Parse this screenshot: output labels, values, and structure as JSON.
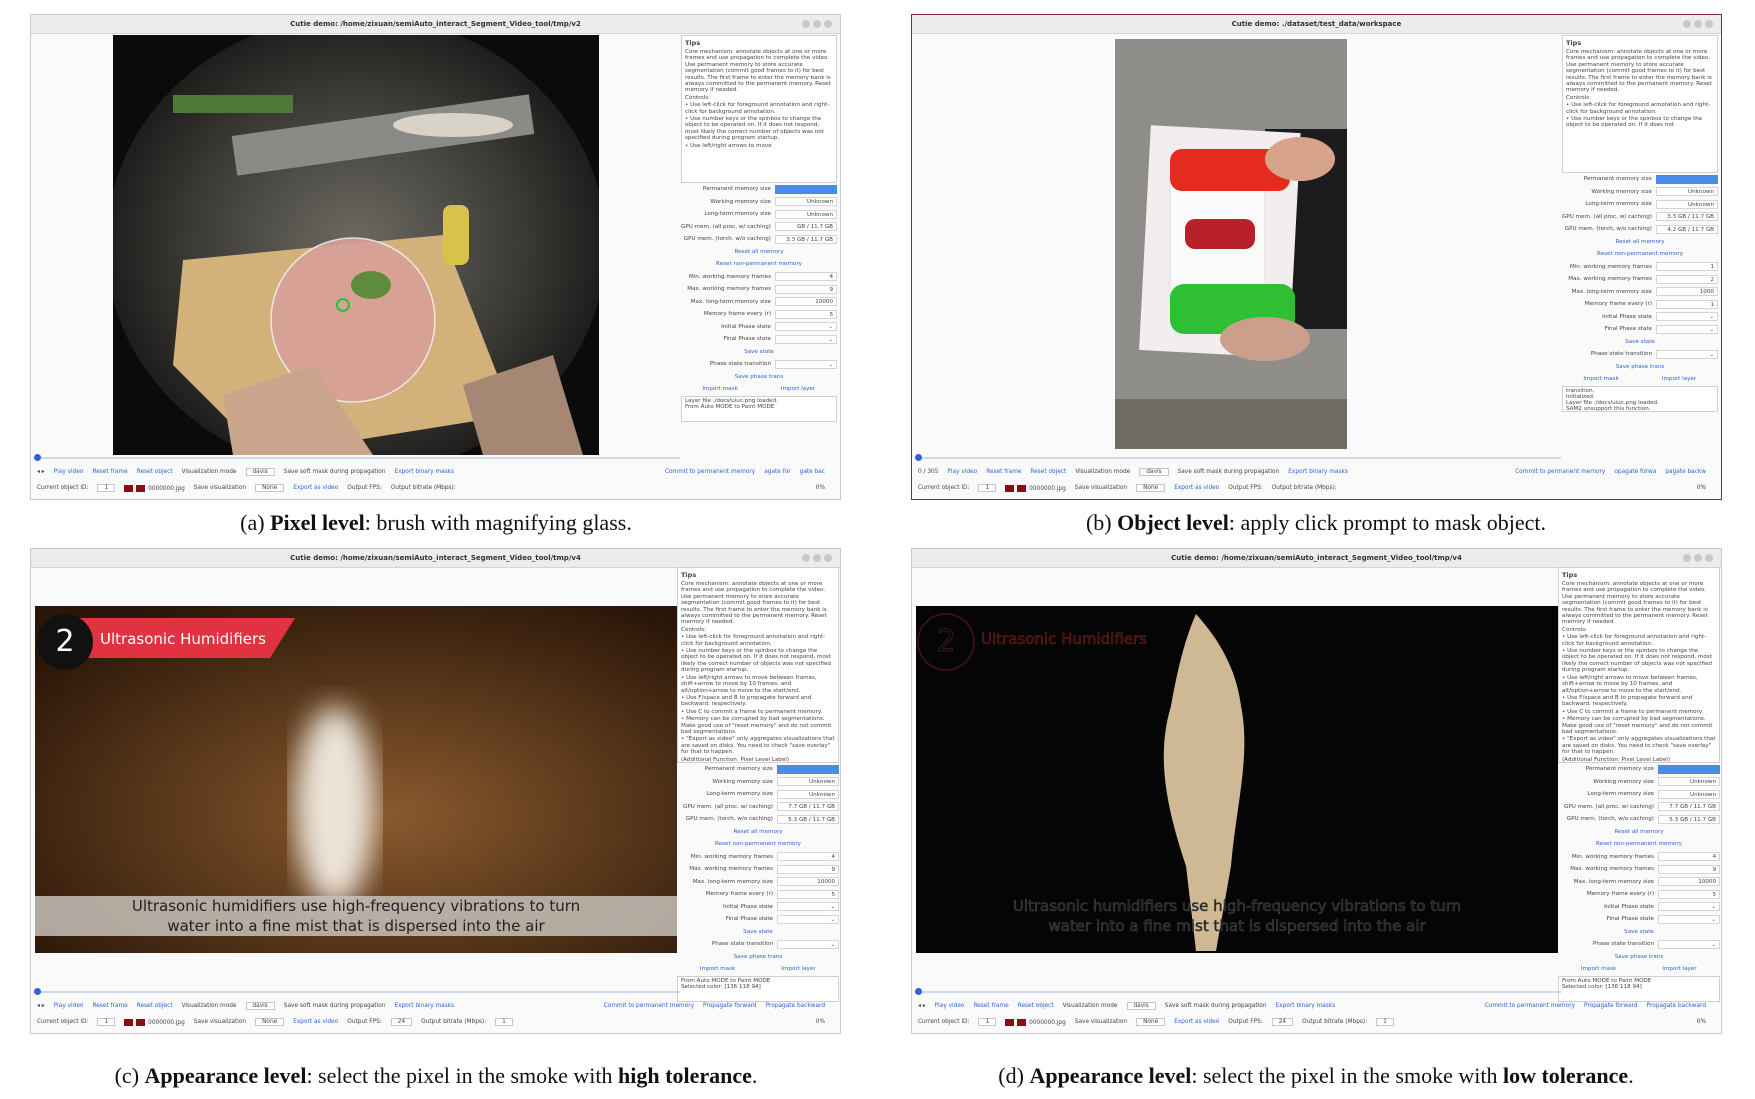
{
  "panels": [
    {
      "window_title": "Cutie demo: /home/zixuan/semiAuto_interact_Segment_Video_tool/tmp/v2",
      "tips_title": "Tips",
      "tips": [
        "Core mechanism: annotate objects at one or more frames and use propagation to complete the video. Use permanent memory to store accurate segmentation (commit good frames to it) for best results. The first frame to enter the memory bank is always committed to the permanent memory. Reset memory if needed.",
        "Controls:",
        "• Use left-click for foreground annotation and right-click for background annotation.",
        "• Use number keys or the spinbox to change the object to be operated on. If it does not respond, most likely the correct number of objects was not specified during program startup.",
        "• Use left/right arrows to move"
      ],
      "rows": [
        {
          "label": "Permanent memory size"
        },
        {
          "label": "Working memory size",
          "value": "Unknown"
        },
        {
          "label": "Long-term memory size",
          "value": "Unknown"
        },
        {
          "label": "GPU mem. (all proc, w/ caching)",
          "value": "GB / 11.7 GB"
        },
        {
          "label": "GPU mem. (torch, w/o caching)",
          "value": "3.3 GB / 11.7 GB"
        },
        {
          "button": "Reset all memory"
        },
        {
          "button": "Reset non-permanent memory"
        },
        {
          "label": "Min. working memory frames",
          "value": "4"
        },
        {
          "label": "Max. working memory frames",
          "value": "9"
        },
        {
          "label": "Max. long-term memory size",
          "value": "10000"
        },
        {
          "label": "Memory frame every (r)",
          "value": "5"
        },
        {
          "label": "Initial Phase state",
          "value": "⌄"
        },
        {
          "label": "Final Phase state",
          "value": "⌄"
        },
        {
          "button": "Save state"
        },
        {
          "label": "Phase state transition",
          "value": "⌄"
        },
        {
          "button": "Save phase trans"
        },
        {
          "buttons": [
            "Import mask",
            "Import layer"
          ]
        },
        {
          "log": [
            "Layer file ./docs/uiuc.png loaded.",
            "From Auto MODE to Paint MODE"
          ]
        }
      ],
      "toolbar1": [
        {
          "label": "◂ ▸"
        },
        {
          "button": "Play video"
        },
        {
          "button": "Reset frame"
        },
        {
          "button": "Reset object"
        },
        {
          "label": "Visualization mode"
        },
        {
          "box": "davis"
        },
        {
          "label": "Save soft mask during propagation"
        },
        {
          "button": "Export binary masks"
        }
      ],
      "toolbar1_right": [
        {
          "button": "Commit to permanent memory"
        },
        {
          "button": "agate for"
        },
        {
          "button": "gate bac"
        }
      ],
      "toolbar2": [
        {
          "label": "Current object ID:"
        },
        {
          "box": "1"
        },
        {
          "label": "0000000.jpg"
        },
        {
          "label": "Save visualization"
        },
        {
          "box": "None"
        },
        {
          "button": "Export as video"
        },
        {
          "label": "Output FPS:"
        },
        {
          "label": "Output bitrate (Mbps):"
        },
        {
          "label": "0%"
        }
      ],
      "caption": [
        {
          "text": "(a) "
        },
        {
          "text": "Pixel level",
          "bold": true
        },
        {
          "text": ": brush with magnifying glass."
        }
      ]
    },
    {
      "window_title": "Cutie demo: ./dataset/test_data/workspace",
      "tips_title": "Tips",
      "tips": [
        "Core mechanism: annotate objects at one or more frames and use propagation to complete the video. Use permanent memory to store accurate segmentation (commit good frames to it) for best results. The first frame to enter the memory bank is always committed to the permanent memory. Reset memory if needed.",
        "Controls:",
        "• Use left-click for foreground annotation and right-click for background annotation.",
        "• Use number keys or the spinbox to change the object to be operated on. If it does not"
      ],
      "rows": [
        {
          "label": "Permanent memory size"
        },
        {
          "label": "Working memory size",
          "value": "Unknown"
        },
        {
          "label": "Long-term memory size",
          "value": "Unknown"
        },
        {
          "label": "GPU mem. (all proc, w/ caching)",
          "value": "3.3 GB / 11.7 GB"
        },
        {
          "label": "GPU mem. (torch, w/o caching)",
          "value": "4.2 GB / 11.7 GB"
        },
        {
          "button": "Reset all memory"
        },
        {
          "button": "Reset non-permanent memory"
        },
        {
          "label": "Min. working memory frames",
          "value": "1"
        },
        {
          "label": "Max. working memory frames",
          "value": "2"
        },
        {
          "label": "Max. long-term memory size",
          "value": "1000"
        },
        {
          "label": "Memory frame every (r)",
          "value": "1"
        },
        {
          "label": "Initial Phase state",
          "value": "⌄"
        },
        {
          "label": "Final Phase state",
          "value": "⌄"
        },
        {
          "button": "Save state"
        },
        {
          "label": "Phase state transition",
          "value": "⌄"
        },
        {
          "button": "Save phase trans"
        },
        {
          "buttons": [
            "Import mask",
            "Import layer"
          ]
        },
        {
          "log": [
            "transition.",
            "Initialized.",
            "Layer file ./docs/uiuc.png loaded.",
            "SAM2 unsupport this function."
          ]
        }
      ],
      "toolbar1": [
        {
          "label": "0 / 305"
        },
        {
          "button": "Play video"
        },
        {
          "button": "Reset frame"
        },
        {
          "button": "Reset object"
        },
        {
          "label": "Visualization mode"
        },
        {
          "box": "davis"
        },
        {
          "label": "Save soft mask during propagation"
        },
        {
          "button": "Export binary masks"
        }
      ],
      "toolbar1_right": [
        {
          "button": "Commit to permanent memory"
        },
        {
          "button": "opagate forwa"
        },
        {
          "button": "pagate backw"
        }
      ],
      "toolbar2": [
        {
          "label": "Current object ID:"
        },
        {
          "box": "1"
        },
        {
          "label": "0000000.jpg"
        },
        {
          "label": "Save visualization"
        },
        {
          "box": "None"
        },
        {
          "button": "Export as video"
        },
        {
          "label": "Output FPS:"
        },
        {
          "label": "Output bitrate (Mbps):"
        },
        {
          "label": "0%"
        }
      ],
      "caption": [
        {
          "text": "(b) "
        },
        {
          "text": "Object level",
          "bold": true
        },
        {
          "text": ": apply click prompt to mask object."
        }
      ]
    },
    {
      "window_title": "Cutie demo: /home/zixuan/semiAuto_interact_Segment_Video_tool/tmp/v4",
      "tips_title": "Tips",
      "tips": [
        "Core mechanism: annotate objects at one or more frames and use propagation to complete the video. Use permanent memory to store accurate segmentation (commit good frames to it) for best results. The first frame to enter the memory bank is always committed to the permanent memory. Reset memory if needed.",
        "Controls:",
        "• Use left-click for foreground annotation and right-click for background annotation.",
        "• Use number keys or the spinbox to change the object to be operated on. If it does not respond, most likely the correct number of objects was not specified during program startup.",
        "• Use left/right arrows to move between frames, shift+arrow to move by 10 frames, and alt/option+arrow to move to the start/end.",
        "• Use F/space and B to propagate forward and backward, respectively.",
        "• Use C to commit a frame to permanent memory.",
        "• Memory can be corrupted by bad segmentations. Make good use of \"reset memory\" and do not commit bad segmentations.",
        "• \"Export as video\" only aggregates visualizations that are saved on disks. You need to check \"save overlay\" for that to happen.",
        "(Additional Function: Pixel Level Label)"
      ],
      "rows": [
        {
          "label": "Permanent memory size"
        },
        {
          "label": "Working memory size",
          "value": "Unknown"
        },
        {
          "label": "Long-term memory size",
          "value": "Unknown"
        },
        {
          "label": "GPU mem. (all proc, w/ caching)",
          "value": "7.7 GB / 11.7 GB"
        },
        {
          "label": "GPU mem. (torch, w/o caching)",
          "value": "5.3 GB / 11.7 GB"
        },
        {
          "button": "Reset all memory"
        },
        {
          "button": "Reset non-permanent memory"
        },
        {
          "label": "Min. working memory frames",
          "value": "4"
        },
        {
          "label": "Max. working memory frames",
          "value": "9"
        },
        {
          "label": "Max. long-term memory size",
          "value": "10000"
        },
        {
          "label": "Memory frame every (r)",
          "value": "5"
        },
        {
          "label": "Initial Phase state",
          "value": "⌄"
        },
        {
          "label": "Final Phase state",
          "value": "⌄"
        },
        {
          "button": "Save state"
        },
        {
          "label": "Phase state transition",
          "value": "⌄"
        },
        {
          "button": "Save phase trans"
        },
        {
          "buttons": [
            "Import mask",
            "Import layer"
          ]
        },
        {
          "log": [
            "From Auto MODE to Paint MODE",
            "Selected color: [136 118 94]"
          ]
        }
      ],
      "toolbar1": [
        {
          "label": "◂ ▸"
        },
        {
          "button": "Play video"
        },
        {
          "button": "Reset frame"
        },
        {
          "button": "Reset object"
        },
        {
          "label": "Visualization mode"
        },
        {
          "box": "davis"
        },
        {
          "label": "Save soft mask during propagation"
        },
        {
          "button": "Export binary masks"
        }
      ],
      "toolbar1_right": [
        {
          "button": "Commit to permanent memory"
        },
        {
          "button": "Propagate forward"
        },
        {
          "button": "Propagate backward"
        }
      ],
      "toolbar2": [
        {
          "label": "Current object ID:"
        },
        {
          "box": "1"
        },
        {
          "label": "0000000.jpg"
        },
        {
          "label": "Save visualization"
        },
        {
          "box": "None"
        },
        {
          "button": "Export as video"
        },
        {
          "label": "Output FPS:"
        },
        {
          "box": "24"
        },
        {
          "label": "Output bitrate (Mbps):"
        },
        {
          "box": "1"
        },
        {
          "label": "0%"
        }
      ],
      "video_text": {
        "badge": "2",
        "banner": "Ultrasonic Humidifiers",
        "subtitle": [
          "Ultrasonic humidifiers use high-frequency vibrations to turn",
          "water into a fine mist that is dispersed into the air"
        ]
      },
      "caption": [
        {
          "text": "(c) "
        },
        {
          "text": "Appearance level",
          "bold": true
        },
        {
          "text": ": select the pixel in the smoke with "
        },
        {
          "text": "high tolerance",
          "bold": true
        },
        {
          "text": "."
        }
      ]
    },
    {
      "window_title": "Cutie demo: /home/zixuan/semiAuto_interact_Segment_Video_tool/tmp/v4",
      "tips_title": "Tips",
      "tips": [
        "Core mechanism: annotate objects at one or more frames and use propagation to complete the video. Use permanent memory to store accurate segmentation (commit good frames to it) for best results. The first frame to enter the memory bank is always committed to the permanent memory. Reset memory if needed.",
        "Controls:",
        "• Use left-click for foreground annotation and right-click for background annotation.",
        "• Use number keys or the spinbox to change the object to be operated on. If it does not respond, most likely the correct number of objects was not specified during program startup.",
        "• Use left/right arrows to move between frames, shift+arrow to move by 10 frames, and alt/option+arrow to move to the start/end.",
        "• Use F/space and B to propagate forward and backward, respectively.",
        "• Use C to commit a frame to permanent memory.",
        "• Memory can be corrupted by bad segmentations. Make good use of \"reset memory\" and do not commit bad segmentations.",
        "• \"Export as video\" only aggregates visualizations that are saved on disks. You need to check \"save overlay\" for that to happen.",
        "(Additional Function: Pixel Level Label)"
      ],
      "rows": [
        {
          "label": "Permanent memory size"
        },
        {
          "label": "Working memory size",
          "value": "Unknown"
        },
        {
          "label": "Long-term memory size",
          "value": "Unknown"
        },
        {
          "label": "GPU mem. (all proc, w/ caching)",
          "value": "7.7 GB / 11.7 GB"
        },
        {
          "label": "GPU mem. (torch, w/o caching)",
          "value": "5.3 GB / 11.7 GB"
        },
        {
          "button": "Reset all memory"
        },
        {
          "button": "Reset non-permanent memory"
        },
        {
          "label": "Min. working memory frames",
          "value": "4"
        },
        {
          "label": "Max. working memory frames",
          "value": "9"
        },
        {
          "label": "Max. long-term memory size",
          "value": "10000"
        },
        {
          "label": "Memory frame every (r)",
          "value": "5"
        },
        {
          "label": "Initial Phase state",
          "value": "⌄"
        },
        {
          "label": "Final Phase state",
          "value": "⌄"
        },
        {
          "button": "Save state"
        },
        {
          "label": "Phase state transition",
          "value": "⌄"
        },
        {
          "button": "Save phase trans"
        },
        {
          "buttons": [
            "Import mask",
            "Import layer"
          ]
        },
        {
          "log": [
            "From Auto MODE to Paint MODE",
            "Selected color: [136 118 94]"
          ]
        }
      ],
      "toolbar1": [
        {
          "label": "◂ ▸"
        },
        {
          "button": "Play video"
        },
        {
          "button": "Reset frame"
        },
        {
          "button": "Reset object"
        },
        {
          "label": "Visualization mode"
        },
        {
          "box": "davis"
        },
        {
          "label": "Save soft mask during propagation"
        },
        {
          "button": "Export binary masks"
        }
      ],
      "toolbar1_right": [
        {
          "button": "Commit to permanent memory"
        },
        {
          "button": "Propagate forward"
        },
        {
          "button": "Propagate backward"
        }
      ],
      "toolbar2": [
        {
          "label": "Current object ID:"
        },
        {
          "box": "1"
        },
        {
          "label": "0000000.jpg"
        },
        {
          "label": "Save visualization"
        },
        {
          "box": "None"
        },
        {
          "button": "Export as video"
        },
        {
          "label": "Output FPS:"
        },
        {
          "box": "24"
        },
        {
          "label": "Output bitrate (Mbps):"
        },
        {
          "box": "1"
        },
        {
          "label": "0%"
        }
      ],
      "video_text": {
        "badge": "2",
        "banner": "Ultrasonic Humidifiers",
        "subtitle": [
          "Ultrasonic humidifiers use high-frequency vibrations to turn",
          "water into a fine mist that is dispersed into the air"
        ]
      },
      "caption": [
        {
          "text": "(d) "
        },
        {
          "text": "Appearance level",
          "bold": true
        },
        {
          "text": ": select the pixel in the smoke with "
        },
        {
          "text": "low tolerance",
          "bold": true
        },
        {
          "text": "."
        }
      ]
    }
  ]
}
